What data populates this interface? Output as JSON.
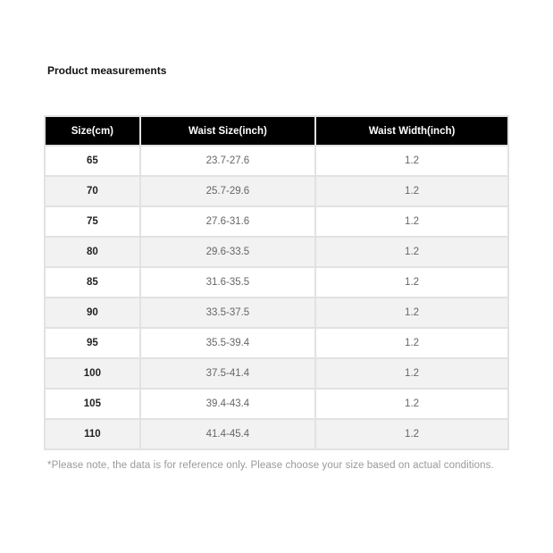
{
  "title": "Product measurements",
  "table": {
    "headers": [
      "Size(cm)",
      "Waist Size(inch)",
      "Waist Width(inch)"
    ],
    "rows": [
      [
        "65",
        "23.7-27.6",
        "1.2"
      ],
      [
        "70",
        "25.7-29.6",
        "1.2"
      ],
      [
        "75",
        "27.6-31.6",
        "1.2"
      ],
      [
        "80",
        "29.6-33.5",
        "1.2"
      ],
      [
        "85",
        "31.6-35.5",
        "1.2"
      ],
      [
        "90",
        "33.5-37.5",
        "1.2"
      ],
      [
        "95",
        "35.5-39.4",
        "1.2"
      ],
      [
        "100",
        "37.5-41.4",
        "1.2"
      ],
      [
        "105",
        "39.4-43.4",
        "1.2"
      ],
      [
        "110",
        "41.4-45.4",
        "1.2"
      ]
    ]
  },
  "note": "*Please note, the data is for reference only. Please choose your size based on actual conditions."
}
